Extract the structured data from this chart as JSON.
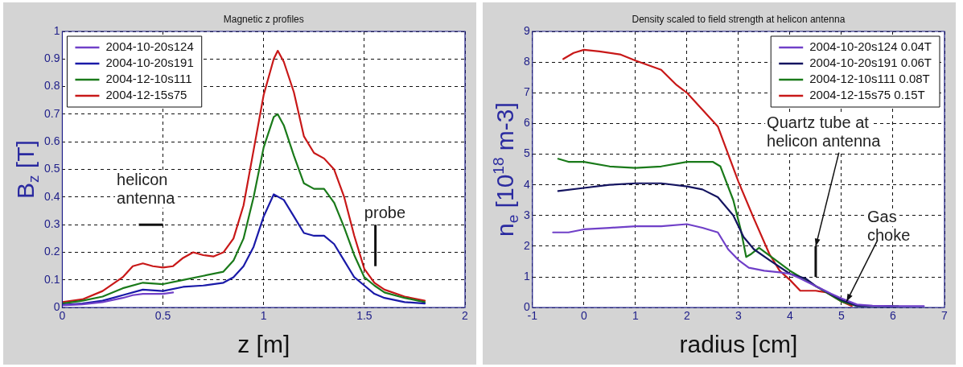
{
  "chart_data": [
    {
      "type": "line",
      "title": "Magnetic z profiles",
      "xlabel": "z [m]",
      "ylabel": "B$_{z}$ [T]",
      "xlim": [
        0,
        2
      ],
      "xticks": [
        0,
        0.5,
        1,
        1.5,
        2
      ],
      "ylim": [
        0,
        1
      ],
      "yticks": [
        0,
        0.1,
        0.2,
        0.3,
        0.4,
        0.5,
        0.6,
        0.7,
        0.8,
        0.9,
        1
      ],
      "grid": true,
      "legend": "top left",
      "marker": "none",
      "line_style": "solid",
      "annotations": [
        "helicon antenna",
        "probe"
      ],
      "series": [
        {
          "name": "2004-10-20s124",
          "color": "#7040c8",
          "x": [
            0,
            0.1,
            0.2,
            0.3,
            0.35,
            0.4,
            0.45,
            0.5,
            0.55
          ],
          "values": [
            0.008,
            0.012,
            0.02,
            0.035,
            0.045,
            0.05,
            0.05,
            0.05,
            0.055
          ]
        },
        {
          "name": "2004-10-20s191",
          "color": "#1a1aa8",
          "x": [
            0,
            0.1,
            0.2,
            0.3,
            0.4,
            0.5,
            0.6,
            0.7,
            0.8,
            0.85,
            0.9,
            0.95,
            1.0,
            1.05,
            1.1,
            1.15,
            1.2,
            1.25,
            1.3,
            1.35,
            1.4,
            1.45,
            1.5,
            1.55,
            1.6,
            1.7,
            1.8
          ],
          "values": [
            0.01,
            0.015,
            0.025,
            0.045,
            0.065,
            0.06,
            0.075,
            0.08,
            0.09,
            0.11,
            0.15,
            0.22,
            0.33,
            0.41,
            0.39,
            0.33,
            0.27,
            0.26,
            0.26,
            0.23,
            0.17,
            0.11,
            0.08,
            0.05,
            0.035,
            0.02,
            0.015
          ]
        },
        {
          "name": "2004-12-10s111",
          "color": "#1a7a1a",
          "x": [
            0,
            0.1,
            0.2,
            0.3,
            0.4,
            0.5,
            0.6,
            0.7,
            0.8,
            0.85,
            0.9,
            0.95,
            1.0,
            1.05,
            1.07,
            1.1,
            1.15,
            1.2,
            1.25,
            1.3,
            1.35,
            1.4,
            1.45,
            1.5,
            1.55,
            1.6,
            1.7,
            1.8
          ],
          "values": [
            0.015,
            0.025,
            0.04,
            0.07,
            0.09,
            0.085,
            0.1,
            0.115,
            0.13,
            0.17,
            0.25,
            0.4,
            0.58,
            0.69,
            0.7,
            0.66,
            0.55,
            0.45,
            0.43,
            0.43,
            0.38,
            0.29,
            0.19,
            0.11,
            0.08,
            0.055,
            0.035,
            0.02
          ]
        },
        {
          "name": "2004-12-15s75",
          "color": "#c81818",
          "x": [
            0,
            0.1,
            0.2,
            0.3,
            0.35,
            0.4,
            0.45,
            0.5,
            0.55,
            0.6,
            0.65,
            0.7,
            0.75,
            0.8,
            0.85,
            0.9,
            0.95,
            1.0,
            1.05,
            1.07,
            1.1,
            1.15,
            1.2,
            1.25,
            1.3,
            1.35,
            1.4,
            1.45,
            1.5,
            1.55,
            1.6,
            1.7,
            1.8
          ],
          "values": [
            0.02,
            0.03,
            0.06,
            0.11,
            0.15,
            0.16,
            0.15,
            0.145,
            0.15,
            0.18,
            0.2,
            0.19,
            0.185,
            0.2,
            0.25,
            0.37,
            0.57,
            0.77,
            0.9,
            0.93,
            0.89,
            0.78,
            0.62,
            0.56,
            0.54,
            0.5,
            0.4,
            0.26,
            0.14,
            0.09,
            0.065,
            0.04,
            0.025
          ]
        }
      ]
    },
    {
      "type": "line",
      "title": "Density scaled to field strength at helicon antenna",
      "xlabel": "radius [cm]",
      "ylabel": "n$_{e}$ [10$^{18}$ m-3]",
      "xlim": [
        -1,
        7
      ],
      "xticks": [
        -1,
        0,
        1,
        2,
        3,
        4,
        5,
        6,
        7
      ],
      "ylim": [
        0,
        9
      ],
      "yticks": [
        0,
        1,
        2,
        3,
        4,
        5,
        6,
        7,
        8,
        9
      ],
      "grid": true,
      "legend": "top right",
      "marker": "none",
      "line_style": "solid",
      "annotations": [
        "Quartz tube at helicon antenna",
        {
          "text": "Gas choke",
          "x": 5.1,
          "y": 0.2
        }
      ],
      "series": [
        {
          "name": "2004-10-20s124 0.04T",
          "color": "#7040c8",
          "x": [
            -0.6,
            -0.3,
            0,
            0.5,
            1,
            1.5,
            2,
            2.3,
            2.6,
            2.8,
            3,
            3.2,
            3.5,
            3.8,
            4,
            4.2,
            4.5,
            4.8,
            5,
            5.3,
            5.6,
            6,
            6.6
          ],
          "values": [
            2.45,
            2.45,
            2.55,
            2.6,
            2.65,
            2.65,
            2.72,
            2.6,
            2.45,
            1.9,
            1.55,
            1.3,
            1.2,
            1.15,
            1.1,
            0.95,
            0.7,
            0.45,
            0.3,
            0.1,
            0.06,
            0.05,
            0.05
          ]
        },
        {
          "name": "2004-10-20s191 0.06T",
          "color": "#141460",
          "x": [
            -0.5,
            0,
            0.5,
            1,
            1.5,
            2,
            2.3,
            2.6,
            2.9,
            3.1,
            3.3,
            3.6,
            4,
            4.3,
            4.5,
            5,
            5.3,
            6
          ],
          "values": [
            3.8,
            3.9,
            4.0,
            4.05,
            4.05,
            3.95,
            3.85,
            3.6,
            3.0,
            2.3,
            1.9,
            1.55,
            1.1,
            0.95,
            0.7,
            0.25,
            0.06,
            0.05
          ]
        },
        {
          "name": "2004-12-10s111 0.08T",
          "color": "#1a7a1a",
          "x": [
            -0.5,
            -0.3,
            0,
            0.5,
            1,
            1.5,
            2,
            2.5,
            2.65,
            2.9,
            3.05,
            3.15,
            3.25,
            3.4,
            3.6,
            4,
            4.5,
            5,
            5.3,
            6.1
          ],
          "values": [
            4.85,
            4.75,
            4.75,
            4.6,
            4.55,
            4.6,
            4.75,
            4.75,
            4.6,
            3.5,
            2.5,
            1.65,
            1.75,
            1.95,
            1.7,
            1.2,
            0.7,
            0.2,
            0.05,
            0.05
          ]
        },
        {
          "name": "2004-12-15s75 0.15T",
          "color": "#c81818",
          "x": [
            -0.4,
            -0.2,
            0,
            0.3,
            0.7,
            1,
            1.5,
            1.8,
            2,
            2.3,
            2.6,
            3,
            3.3,
            3.6,
            3.8,
            4,
            4.2,
            4.5,
            4.7,
            5,
            5.2
          ],
          "values": [
            8.1,
            8.3,
            8.4,
            8.35,
            8.25,
            8.05,
            7.75,
            7.25,
            7.0,
            6.45,
            5.9,
            4.1,
            2.9,
            1.75,
            1.2,
            0.9,
            0.55,
            0.55,
            0.5,
            0.2,
            0.05
          ]
        }
      ]
    }
  ]
}
